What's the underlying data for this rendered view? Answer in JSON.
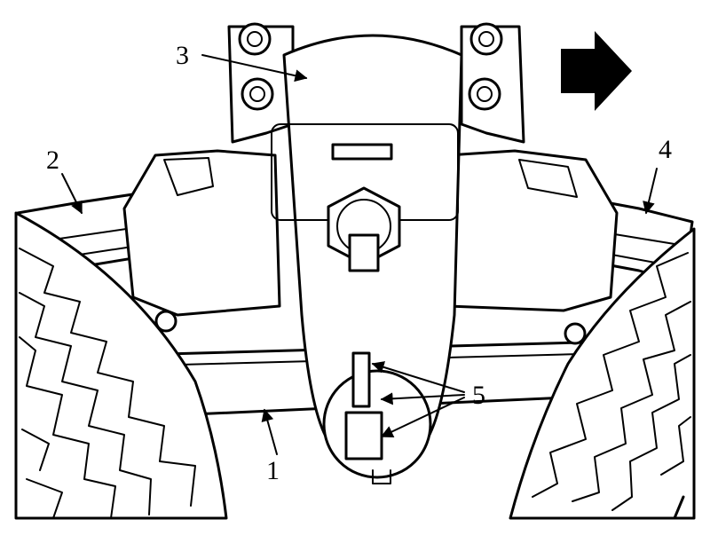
{
  "callouts": {
    "c1": "1",
    "c2": "2",
    "c3": "3",
    "c4": "4",
    "c5": "5"
  },
  "colors": {
    "ink": "#000000",
    "paper": "#ffffff"
  },
  "icons": {
    "direction": "right-arrow-icon"
  }
}
